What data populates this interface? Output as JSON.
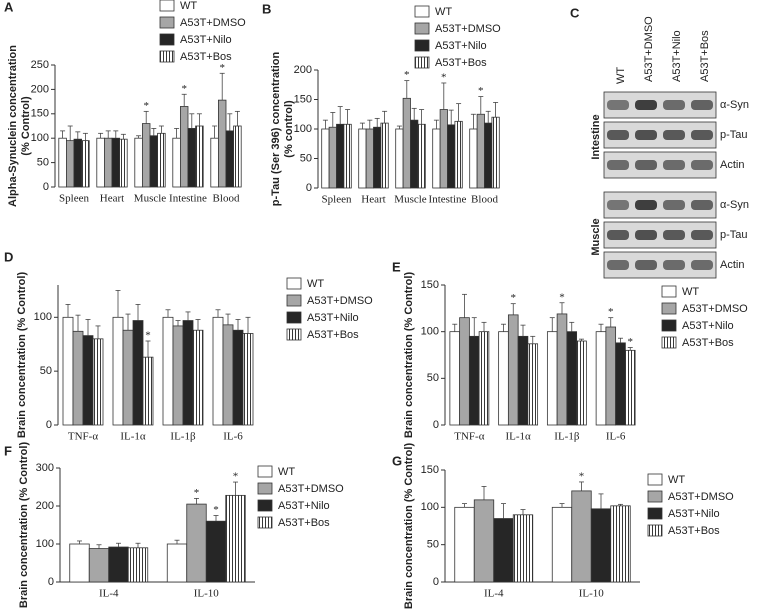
{
  "chart_data": [
    {
      "type": "bar",
      "panel": "A",
      "ylabel": "Alpha-Synuclein concentration\n(% Control)",
      "categories": [
        "Spleen",
        "Heart",
        "Muscle",
        "Intestine",
        "Blood"
      ],
      "ylim": [
        0,
        250
      ],
      "yticks": [
        0,
        50,
        100,
        150,
        200,
        250
      ],
      "series": [
        {
          "name": "WT",
          "color": "#ffffff",
          "values": [
            100,
            100,
            100,
            100,
            100
          ],
          "errors": [
            15,
            10,
            5,
            20,
            25
          ]
        },
        {
          "name": "A53T+DMSO",
          "color": "#a6a6a6",
          "values": [
            95,
            100,
            130,
            165,
            178
          ],
          "errors": [
            30,
            15,
            25,
            25,
            55
          ]
        },
        {
          "name": "A53T+Nilo",
          "color": "#262626",
          "values": [
            98,
            100,
            105,
            120,
            115
          ],
          "errors": [
            15,
            15,
            15,
            30,
            35
          ]
        },
        {
          "name": "A53T+Bos",
          "color": "#ffffff",
          "hatch": true,
          "values": [
            95,
            98,
            110,
            125,
            125
          ],
          "errors": [
            15,
            10,
            15,
            25,
            30
          ]
        }
      ],
      "annotations": [
        {
          "text": "*",
          "series": 1,
          "category": 2
        },
        {
          "text": "*",
          "series": 1,
          "category": 3
        },
        {
          "text": "*",
          "series": 1,
          "category": 4
        }
      ]
    },
    {
      "type": "bar",
      "panel": "B",
      "ylabel": "p-Tau (Ser 396) concentration\n(% control)",
      "categories": [
        "Spleen",
        "Heart",
        "Muscle",
        "Intestine",
        "Blood"
      ],
      "ylim": [
        0,
        200
      ],
      "yticks": [
        0,
        50,
        100,
        150,
        200
      ],
      "series": [
        {
          "name": "WT",
          "color": "#ffffff",
          "values": [
            100,
            100,
            100,
            100,
            100
          ],
          "errors": [
            15,
            10,
            5,
            15,
            25
          ]
        },
        {
          "name": "A53T+DMSO",
          "color": "#a6a6a6",
          "values": [
            103,
            100,
            152,
            133,
            125
          ],
          "errors": [
            25,
            15,
            30,
            45,
            30
          ]
        },
        {
          "name": "A53T+Nilo",
          "color": "#262626",
          "values": [
            108,
            103,
            115,
            107,
            110
          ],
          "errors": [
            30,
            15,
            20,
            25,
            20
          ]
        },
        {
          "name": "A53T+Bos",
          "color": "#ffffff",
          "hatch": true,
          "values": [
            108,
            110,
            108,
            113,
            120
          ],
          "errors": [
            25,
            20,
            25,
            30,
            25
          ]
        }
      ],
      "annotations": [
        {
          "text": "*",
          "series": 1,
          "category": 2
        },
        {
          "text": "*",
          "series": 1,
          "category": 3
        },
        {
          "text": "*",
          "series": 1,
          "category": 4
        }
      ]
    },
    {
      "type": "bar",
      "panel": "D",
      "ylabel": "Brain concentration (% Control)",
      "categories": [
        "TNF-α",
        "IL-1α",
        "IL-1β",
        "IL-6"
      ],
      "ylim": [
        0,
        130
      ],
      "yticks": [
        0,
        50,
        100
      ],
      "series": [
        {
          "name": "WT",
          "color": "#ffffff",
          "values": [
            100,
            100,
            100,
            100
          ],
          "errors": [
            12,
            25,
            7,
            7
          ]
        },
        {
          "name": "A53T+DMSO",
          "color": "#a6a6a6",
          "values": [
            87,
            88,
            92,
            93
          ],
          "errors": [
            15,
            15,
            5,
            10
          ]
        },
        {
          "name": "A53T+Nilo",
          "color": "#262626",
          "values": [
            83,
            97,
            97,
            88
          ],
          "errors": [
            15,
            15,
            8,
            10
          ]
        },
        {
          "name": "A53T+Bos",
          "color": "#ffffff",
          "hatch": true,
          "values": [
            80,
            63,
            88,
            85
          ],
          "errors": [
            12,
            15,
            10,
            15
          ]
        }
      ],
      "annotations": [
        {
          "text": "*",
          "series": 3,
          "category": 1
        }
      ]
    },
    {
      "type": "bar",
      "panel": "E",
      "ylabel": "Brain concentration (% Control)",
      "categories": [
        "TNF-α",
        "IL-1α",
        "IL-1β",
        "IL-6"
      ],
      "ylim": [
        0,
        150
      ],
      "yticks": [
        0,
        50,
        100,
        150
      ],
      "series": [
        {
          "name": "WT",
          "color": "#ffffff",
          "values": [
            100,
            100,
            100,
            100
          ],
          "errors": [
            8,
            8,
            15,
            8
          ]
        },
        {
          "name": "A53T+DMSO",
          "color": "#a6a6a6",
          "values": [
            115,
            118,
            119,
            105
          ],
          "errors": [
            25,
            12,
            12,
            10
          ]
        },
        {
          "name": "A53T+Nilo",
          "color": "#262626",
          "values": [
            95,
            95,
            100,
            88
          ],
          "errors": [
            20,
            12,
            10,
            5
          ]
        },
        {
          "name": "A53T+Bos",
          "color": "#ffffff",
          "hatch": true,
          "values": [
            100,
            87,
            90,
            80
          ],
          "errors": [
            10,
            8,
            2,
            3
          ]
        }
      ],
      "annotations": [
        {
          "text": "*",
          "series": 1,
          "category": 1
        },
        {
          "text": "*",
          "series": 1,
          "category": 2
        },
        {
          "text": "*",
          "series": 1,
          "category": 3
        },
        {
          "text": "*",
          "series": 3,
          "category": 3
        }
      ]
    },
    {
      "type": "bar",
      "panel": "F",
      "ylabel": "Brain concentration (% Control)",
      "categories": [
        "IL-4",
        "IL-10"
      ],
      "ylim": [
        0,
        300
      ],
      "yticks": [
        0,
        100,
        200,
        300
      ],
      "series": [
        {
          "name": "WT",
          "color": "#ffffff",
          "values": [
            100,
            100
          ],
          "errors": [
            8,
            10
          ]
        },
        {
          "name": "A53T+DMSO",
          "color": "#a6a6a6",
          "values": [
            88,
            205
          ],
          "errors": [
            10,
            15
          ]
        },
        {
          "name": "A53T+Nilo",
          "color": "#262626",
          "values": [
            92,
            160
          ],
          "errors": [
            10,
            15
          ]
        },
        {
          "name": "A53T+Bos",
          "color": "#ffffff",
          "hatch": true,
          "values": [
            90,
            228
          ],
          "errors": [
            12,
            35
          ]
        }
      ],
      "annotations": [
        {
          "text": "*",
          "series": 1,
          "category": 1
        },
        {
          "text": "*",
          "series": 2,
          "category": 1
        },
        {
          "text": "*",
          "series": 3,
          "category": 1
        }
      ]
    },
    {
      "type": "bar",
      "panel": "G",
      "ylabel": "Brain concentration (% Control)",
      "categories": [
        "IL-4",
        "IL-10"
      ],
      "ylim": [
        0,
        150
      ],
      "yticks": [
        0,
        50,
        100,
        150
      ],
      "series": [
        {
          "name": "WT",
          "color": "#ffffff",
          "values": [
            100,
            100
          ],
          "errors": [
            5,
            5
          ]
        },
        {
          "name": "A53T+DMSO",
          "color": "#a6a6a6",
          "values": [
            110,
            122
          ],
          "errors": [
            18,
            12
          ]
        },
        {
          "name": "A53T+Nilo",
          "color": "#262626",
          "values": [
            85,
            98
          ],
          "errors": [
            20,
            20
          ]
        },
        {
          "name": "A53T+Bos",
          "color": "#ffffff",
          "hatch": true,
          "values": [
            90,
            102
          ],
          "errors": [
            7,
            2
          ]
        }
      ],
      "annotations": [
        {
          "text": "*",
          "series": 1,
          "category": 1
        }
      ]
    }
  ],
  "blot": {
    "panel": "C",
    "lanes": [
      "WT",
      "A53T+DMSO",
      "A53T+Nilo",
      "A53T+Bos"
    ],
    "groups": [
      {
        "tissue": "Intestine",
        "bands": [
          "α-Syn",
          "p-Tau",
          "Actin"
        ]
      },
      {
        "tissue": "Muscle",
        "bands": [
          "α-Syn",
          "p-Tau",
          "Actin"
        ]
      }
    ]
  }
}
